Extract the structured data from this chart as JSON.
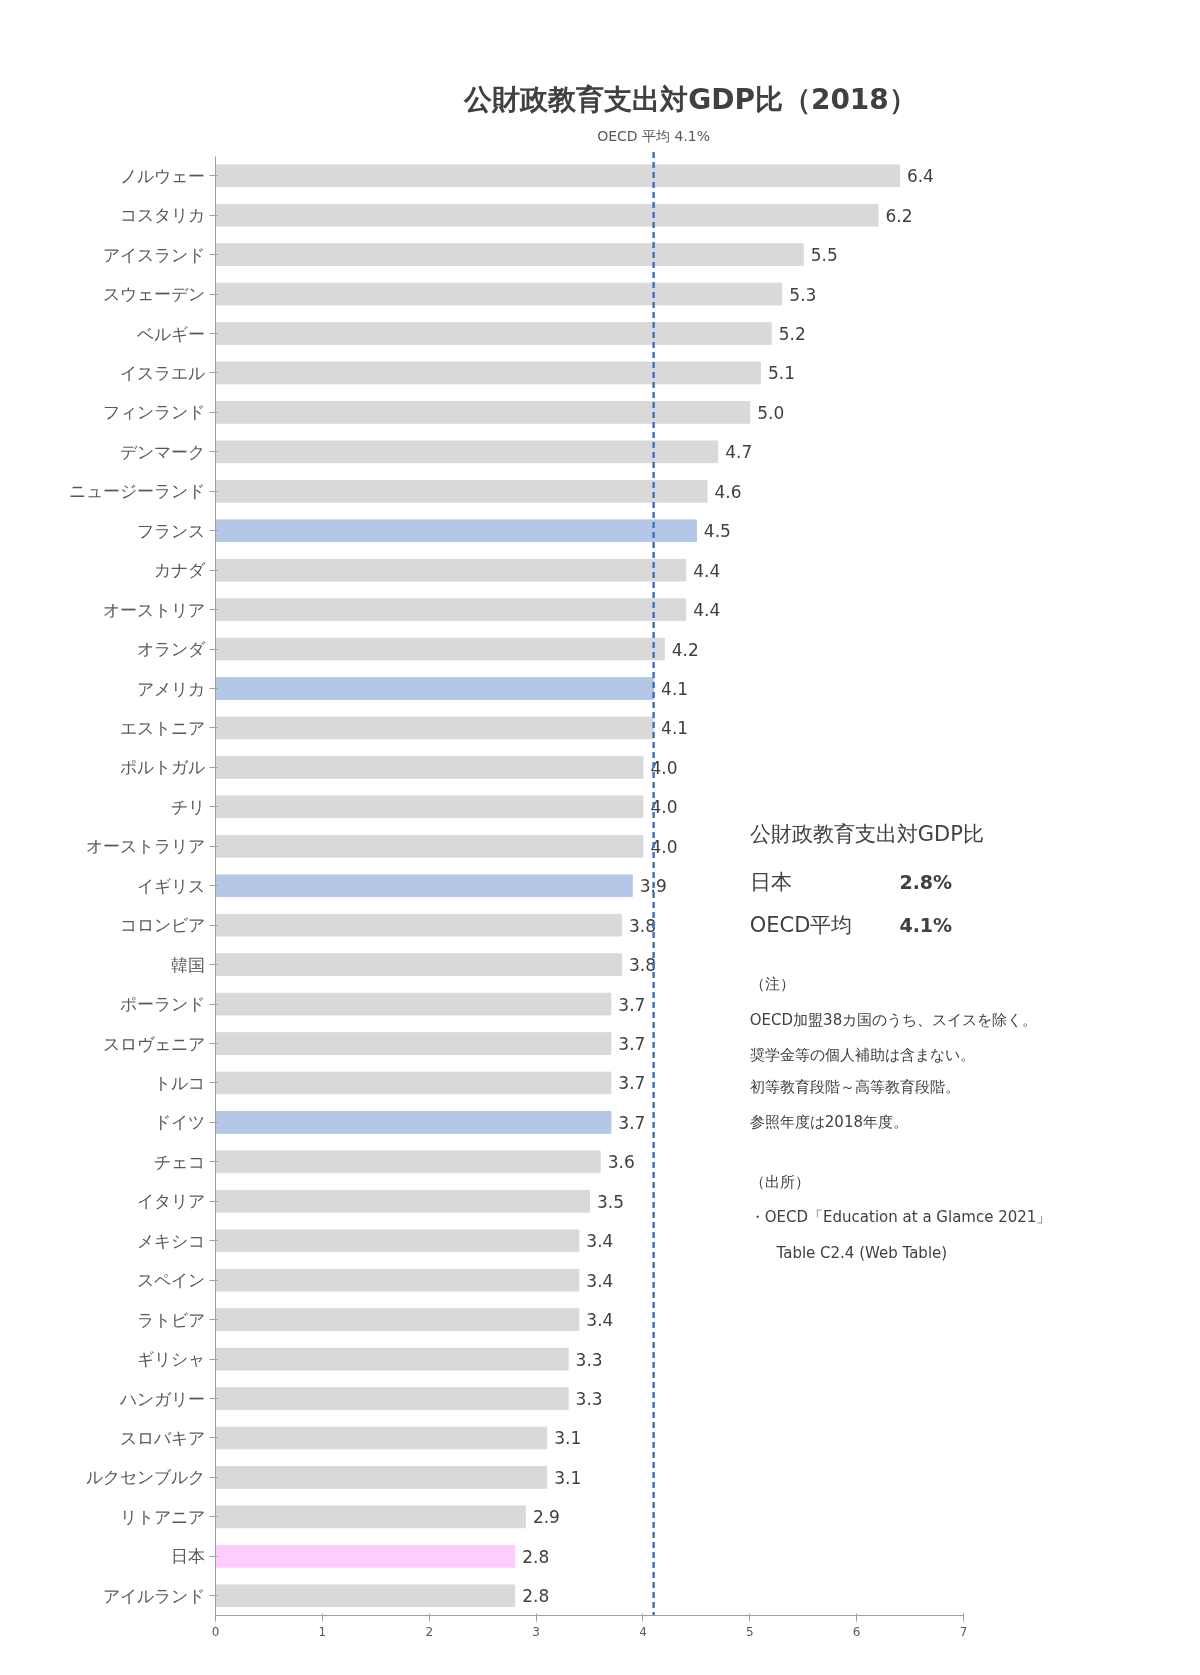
{
  "chart_data": {
    "type": "bar",
    "orientation": "horizontal",
    "title": "公財政教育支出対GDP比（2018）",
    "categories": [
      "ノルウェー",
      "コスタリカ",
      "アイスランド",
      "スウェーデン",
      "ベルギー",
      "イスラエル",
      "フィンランド",
      "デンマーク",
      "ニュージーランド",
      "フランス",
      "カナダ",
      "オーストリア",
      "オランダ",
      "アメリカ",
      "エストニア",
      "ポルトガル",
      "チリ",
      "オーストラリア",
      "イギリス",
      "コロンビア",
      "韓国",
      "ポーランド",
      "スロヴェニア",
      "トルコ",
      "ドイツ",
      "チェコ",
      "イタリア",
      "メキシコ",
      "スペイン",
      "ラトビア",
      "ギリシャ",
      "ハンガリー",
      "スロバキア",
      "ルクセンブルク",
      "リトアニア",
      "日本",
      "アイルランド"
    ],
    "values": [
      6.4,
      6.2,
      5.5,
      5.3,
      5.2,
      5.1,
      5.0,
      4.7,
      4.6,
      4.5,
      4.4,
      4.4,
      4.2,
      4.1,
      4.1,
      4.0,
      4.0,
      4.0,
      3.9,
      3.8,
      3.8,
      3.7,
      3.7,
      3.7,
      3.7,
      3.6,
      3.5,
      3.4,
      3.4,
      3.4,
      3.3,
      3.3,
      3.1,
      3.1,
      2.9,
      2.8,
      2.8
    ],
    "colors": [
      "#d9d9d9",
      "#d9d9d9",
      "#d9d9d9",
      "#d9d9d9",
      "#d9d9d9",
      "#d9d9d9",
      "#d9d9d9",
      "#d9d9d9",
      "#d9d9d9",
      "#b4c7e7",
      "#d9d9d9",
      "#d9d9d9",
      "#d9d9d9",
      "#b4c7e7",
      "#d9d9d9",
      "#d9d9d9",
      "#d9d9d9",
      "#d9d9d9",
      "#b4c7e7",
      "#d9d9d9",
      "#d9d9d9",
      "#d9d9d9",
      "#d9d9d9",
      "#d9d9d9",
      "#b4c7e7",
      "#d9d9d9",
      "#d9d9d9",
      "#d9d9d9",
      "#d9d9d9",
      "#d9d9d9",
      "#d9d9d9",
      "#d9d9d9",
      "#d9d9d9",
      "#d9d9d9",
      "#d9d9d9",
      "#ffccff",
      "#d9d9d9"
    ],
    "value_labels": [
      "6.4",
      "6.2",
      "5.5",
      "5.3",
      "5.2",
      "5.1",
      "5.0",
      "4.7",
      "4.6",
      "4.5",
      "4.4",
      "4.4",
      "4.2",
      "4.1",
      "4.1",
      "4.0",
      "4.0",
      "4.0",
      "3.9",
      "3.8",
      "3.8",
      "3.7",
      "3.7",
      "3.7",
      "3.7",
      "3.6",
      "3.5",
      "3.4",
      "3.4",
      "3.4",
      "3.3",
      "3.3",
      "3.1",
      "3.1",
      "2.9",
      "2.8",
      "2.8"
    ],
    "xlim": [
      0,
      7
    ],
    "xticks": [
      0,
      1,
      2,
      3,
      4,
      5,
      6,
      7
    ],
    "grid": false,
    "ref_lines": [
      {
        "axis": "x",
        "value": 4.1,
        "label": "OECD 平均 4.1%",
        "color": "#4472c4",
        "line_style": "dashed"
      }
    ],
    "annotations": [
      "公財政教育支出対GDP比",
      "日本",
      "2.8%",
      "OECD平均",
      "4.1%",
      "（注）",
      "OECD加盟38カ国のうち、スイスを除く。",
      "奨学金等の個人補助は含まない。",
      "初等教育段階～高等教育段階。",
      "参照年度は2018年度。",
      "（出所）",
      "・OECD「Education at a Glamce 2021」",
      "Table C2.4 (Web Table)"
    ]
  }
}
